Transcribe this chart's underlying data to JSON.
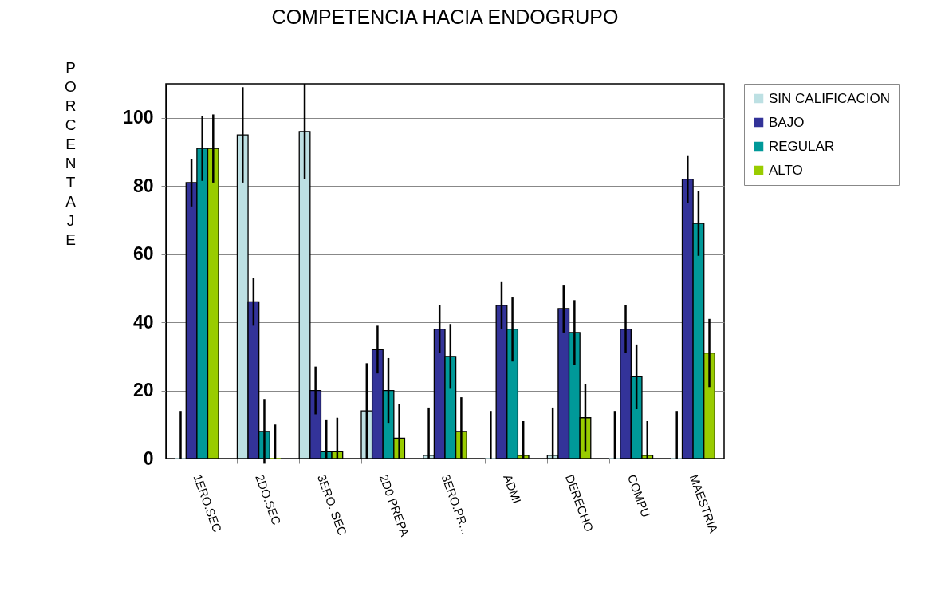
{
  "chart_data": {
    "type": "bar",
    "title": "COMPETENCIA HACIA ENDOGRUPO",
    "ylabel": "PORCENTAJE",
    "categories": [
      "1ERO.SEC",
      "2DO.SEC",
      "3ERO. SEC",
      "2D0 PREPA",
      "3ERO.PR...",
      "ADMI",
      "DERECHO",
      "COMPU",
      "MAESTRIA"
    ],
    "series": [
      {
        "name": "SIN CALIFICACION",
        "color": "#bde0e3",
        "values": [
          0,
          95,
          96,
          14,
          1,
          0,
          1,
          0,
          0
        ],
        "errors": [
          [
            0,
            14
          ],
          14,
          14,
          14,
          [
            0,
            15
          ],
          [
            0,
            14
          ],
          [
            0,
            15
          ],
          [
            0,
            14
          ],
          [
            0,
            14
          ]
        ]
      },
      {
        "name": "BAJO",
        "color": "#333399",
        "values": [
          81,
          46,
          20,
          32,
          38,
          45,
          44,
          38,
          82
        ],
        "errors": [
          7,
          7,
          7,
          7,
          7,
          7,
          7,
          7,
          7
        ]
      },
      {
        "name": "REGULAR",
        "color": "#009999",
        "values": [
          91,
          8,
          2,
          20,
          30,
          38,
          37,
          24,
          69
        ],
        "errors": [
          9.5,
          9.5,
          [
            0,
            11.5
          ],
          9.5,
          9.5,
          9.5,
          9.5,
          9.5,
          9.5
        ]
      },
      {
        "name": "ALTO",
        "color": "#99cc00",
        "values": [
          91,
          0,
          2,
          6,
          8,
          1,
          12,
          1,
          31
        ],
        "errors": [
          10,
          [
            0,
            10
          ],
          [
            0,
            12
          ],
          [
            0,
            16
          ],
          [
            0,
            18
          ],
          [
            0,
            11
          ],
          10,
          [
            0,
            11
          ],
          10
        ]
      }
    ],
    "ylim": [
      0,
      110
    ],
    "yticks": [
      0,
      20,
      40,
      60,
      80,
      100
    ],
    "grid": "y",
    "legend": "right"
  }
}
